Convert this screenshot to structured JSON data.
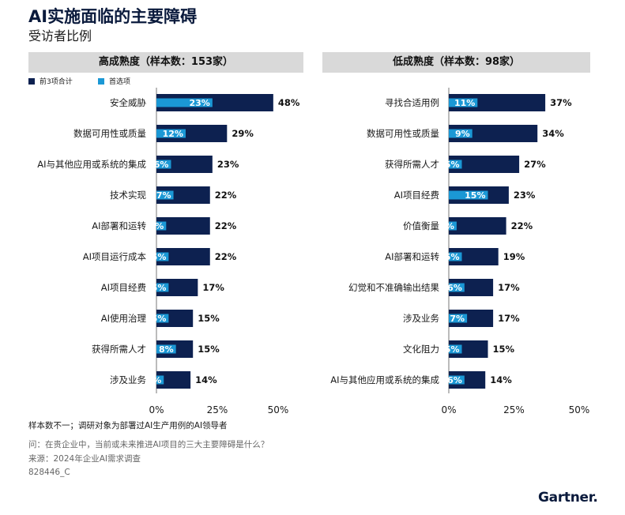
{
  "title": "AI实施面临的主要障碍",
  "subtitle": "受访者比例",
  "legend": {
    "top3_label": "前3项合计",
    "first_label": "首选项"
  },
  "colors": {
    "top3": "#0d2150",
    "first": "#1b98d5",
    "header_bg": "#d9d9d9"
  },
  "chart_data": [
    {
      "type": "bar",
      "title": "高成熟度（样本数：153家）",
      "orientation": "horizontal",
      "categories": [
        "安全威胁",
        "数据可用性或质量",
        "AI与其他应用或系统的集成",
        "技术实现",
        "AI部署和运转",
        "AI项目运行成本",
        "AI项目经费",
        "AI使用治理",
        "获得所需人才",
        "涉及业务"
      ],
      "series": [
        {
          "name": "前3项合计",
          "values": [
            48,
            29,
            23,
            22,
            22,
            22,
            17,
            15,
            15,
            14
          ]
        },
        {
          "name": "首选项",
          "values": [
            23,
            12,
            6,
            7,
            4,
            5,
            5,
            5,
            8,
            3
          ]
        }
      ],
      "xlim": [
        0,
        50
      ],
      "xticks": [
        "0%",
        "25%",
        "50%"
      ]
    },
    {
      "type": "bar",
      "title": "低成熟度（样本数：98家）",
      "orientation": "horizontal",
      "categories": [
        "寻找合适用例",
        "数据可用性或质量",
        "获得所需人才",
        "AI项目经费",
        "价值衡量",
        "AI部署和运转",
        "幻觉和不准确输出结果",
        "涉及业务",
        "文化阻力",
        "AI与其他应用或系统的集成"
      ],
      "series": [
        {
          "name": "前3项合计",
          "values": [
            37,
            34,
            27,
            23,
            22,
            19,
            17,
            17,
            15,
            14
          ]
        },
        {
          "name": "首选项",
          "values": [
            11,
            9,
            5,
            15,
            3,
            5,
            6,
            7,
            5,
            6
          ]
        }
      ],
      "xlim": [
        0,
        50
      ],
      "xticks": [
        "0%",
        "25%",
        "50%"
      ]
    }
  ],
  "footnotes": {
    "sample_note": "样本数不一；调研对象为部署过AI生产用例的AI领导者",
    "question": "问：在贵企业中，当前或未来推进AI项目的三大主要障碍是什么？",
    "source": "来源：2024年企业AI需求调查",
    "code": "828446_C"
  },
  "brand": "Gartner."
}
